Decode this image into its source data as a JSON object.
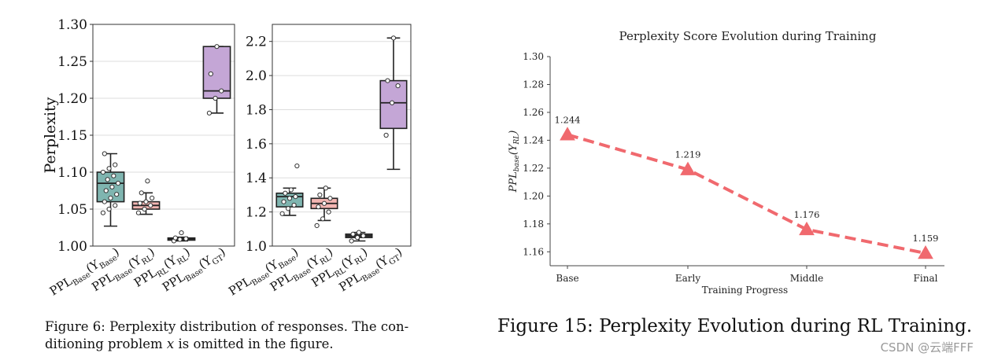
{
  "figure6": {
    "caption_line1": "Figure 6: Perplexity distribution of responses. The con-",
    "caption_pre": "ditioning problem ",
    "caption_var": "x",
    "caption_post": " is omitted in the figure.",
    "categories": [
      {
        "main": "PPL",
        "sub": "Base",
        "arg": "Base"
      },
      {
        "main": "PPL",
        "sub": "Base",
        "arg": "RL"
      },
      {
        "main": "PPL",
        "sub": "RL",
        "arg": "RL"
      },
      {
        "main": "PPL",
        "sub": "Base",
        "arg": "GT"
      }
    ],
    "box_colors": [
      "#7fb5b0",
      "#f2b5b2",
      "#555555",
      "#c4a6d6"
    ],
    "panels": [
      {
        "ylabel": "Perplexity",
        "ylim": [
          1.0,
          1.3
        ],
        "yticks": [
          "1.00",
          "1.05",
          "1.10",
          "1.15",
          "1.20",
          "1.25",
          "1.30"
        ],
        "boxes": [
          {
            "q1": 1.06,
            "median": 1.085,
            "q3": 1.1,
            "whisker_low": 1.027,
            "whisker_high": 1.125,
            "points": [
              1.045,
              1.05,
              1.055,
              1.06,
              1.065,
              1.07,
              1.075,
              1.08,
              1.085,
              1.09,
              1.095,
              1.1,
              1.105,
              1.11,
              1.125
            ]
          },
          {
            "q1": 1.05,
            "median": 1.055,
            "q3": 1.06,
            "whisker_low": 1.043,
            "whisker_high": 1.072,
            "points": [
              1.045,
              1.05,
              1.055,
              1.058,
              1.06,
              1.065,
              1.072,
              1.088
            ]
          },
          {
            "q1": 1.008,
            "median": 1.01,
            "q3": 1.011,
            "whisker_low": 1.007,
            "whisker_high": 1.012,
            "points": [
              1.007,
              1.009,
              1.01,
              1.011,
              1.018
            ]
          },
          {
            "q1": 1.2,
            "median": 1.21,
            "q3": 1.27,
            "whisker_low": 1.18,
            "whisker_high": 1.27,
            "points": [
              1.18,
              1.2,
              1.21,
              1.233,
              1.27
            ]
          }
        ]
      },
      {
        "ylabel": "",
        "ylim": [
          1.0,
          2.3
        ],
        "yticks": [
          "1.0",
          "1.2",
          "1.4",
          "1.6",
          "1.8",
          "2.0",
          "2.2"
        ],
        "boxes": [
          {
            "q1": 1.23,
            "median": 1.29,
            "q3": 1.31,
            "whisker_low": 1.18,
            "whisker_high": 1.34,
            "points": [
              1.19,
              1.22,
              1.24,
              1.26,
              1.28,
              1.29,
              1.31,
              1.33,
              1.47
            ]
          },
          {
            "q1": 1.22,
            "median": 1.25,
            "q3": 1.28,
            "whisker_low": 1.15,
            "whisker_high": 1.34,
            "points": [
              1.12,
              1.16,
              1.2,
              1.23,
              1.25,
              1.28,
              1.3,
              1.34
            ]
          },
          {
            "q1": 1.05,
            "median": 1.06,
            "q3": 1.07,
            "whisker_low": 1.03,
            "whisker_high": 1.08,
            "points": [
              1.03,
              1.05,
              1.06,
              1.07,
              1.08
            ]
          },
          {
            "q1": 1.69,
            "median": 1.84,
            "q3": 1.97,
            "whisker_low": 1.45,
            "whisker_high": 2.22,
            "points": [
              1.65,
              1.84,
              1.94,
              1.97,
              2.22
            ]
          }
        ]
      }
    ]
  },
  "chart_data": [
    {
      "type": "box",
      "ylabel": "Perplexity",
      "ylim": [
        1.0,
        1.3
      ],
      "categories": [
        "PPL_Base(Y_Base)",
        "PPL_Base(Y_RL)",
        "PPL_RL(Y_RL)",
        "PPL_Base(Y_GT)"
      ],
      "medians": [
        1.085,
        1.055,
        1.01,
        1.21
      ],
      "q1": [
        1.06,
        1.05,
        1.008,
        1.2
      ],
      "q3": [
        1.1,
        1.06,
        1.011,
        1.27
      ],
      "whisker_low": [
        1.027,
        1.043,
        1.007,
        1.18
      ],
      "whisker_high": [
        1.125,
        1.072,
        1.012,
        1.27
      ],
      "grid": "y"
    },
    {
      "type": "box",
      "ylim": [
        1.0,
        2.3
      ],
      "categories": [
        "PPL_Base(Y_Base)",
        "PPL_Base(Y_RL)",
        "PPL_RL(Y_RL)",
        "PPL_Base(Y_GT)"
      ],
      "medians": [
        1.29,
        1.25,
        1.06,
        1.84
      ],
      "q1": [
        1.23,
        1.22,
        1.05,
        1.69
      ],
      "q3": [
        1.31,
        1.28,
        1.07,
        1.97
      ],
      "whisker_low": [
        1.18,
        1.15,
        1.03,
        1.45
      ],
      "whisker_high": [
        1.34,
        1.34,
        1.08,
        2.22
      ],
      "grid": "y"
    },
    {
      "type": "line",
      "title": "Perplexity Score Evolution during Training",
      "xlabel": "Training Progress",
      "ylabel_base": "PPL",
      "ylabel_sub": "base",
      "ylabel_arg": "Y",
      "ylabel_arg_sub": "RL",
      "categories": [
        "Base",
        "Early",
        "Middle",
        "Final"
      ],
      "values": [
        1.244,
        1.219,
        1.176,
        1.159
      ],
      "data_labels": [
        "1.244",
        "1.219",
        "1.176",
        "1.159"
      ],
      "ylim": [
        1.15,
        1.3
      ],
      "yticks": [
        "1.16",
        "1.18",
        "1.20",
        "1.22",
        "1.24",
        "1.26",
        "1.28",
        "1.30"
      ],
      "color": "#f0696e",
      "line_style": "dashed",
      "marker": "triangle",
      "grid": "none"
    }
  ],
  "figure15": {
    "caption": "Figure 15: Perplexity Evolution during RL Training."
  },
  "watermark": "CSDN @云端FFF"
}
